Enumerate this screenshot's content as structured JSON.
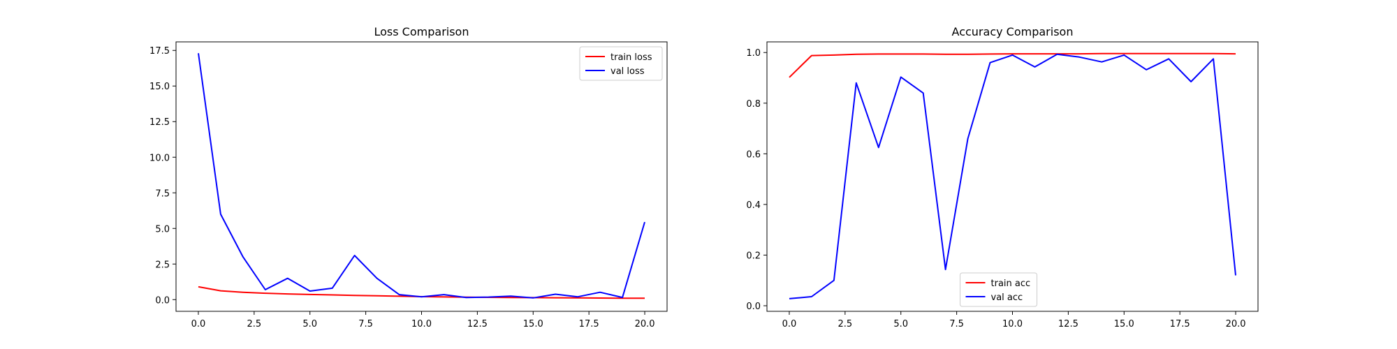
{
  "chart_data": [
    {
      "type": "line",
      "title": "Loss Comparison",
      "xlabel": "",
      "ylabel": "",
      "xlim": [
        -1,
        21
      ],
      "ylim": [
        -0.82,
        18.1
      ],
      "xticks": [
        0,
        2.5,
        5,
        7.5,
        10,
        12.5,
        15,
        17.5,
        20
      ],
      "xtick_labels": [
        "0.0",
        "2.5",
        "5.0",
        "7.5",
        "10.0",
        "12.5",
        "15.0",
        "17.5",
        "20.0"
      ],
      "yticks": [
        0,
        2.5,
        5,
        7.5,
        10,
        12.5,
        15,
        17.5
      ],
      "ytick_labels": [
        "0.0",
        "2.5",
        "5.0",
        "7.5",
        "10.0",
        "12.5",
        "15.0",
        "17.5"
      ],
      "grid": false,
      "legend": "upper right",
      "x": [
        0,
        1,
        2,
        3,
        4,
        5,
        6,
        7,
        8,
        9,
        10,
        11,
        12,
        13,
        14,
        15,
        16,
        17,
        18,
        19,
        20
      ],
      "series": [
        {
          "name": "train loss",
          "color": "#ff0000",
          "values": [
            0.9,
            0.62,
            0.52,
            0.45,
            0.4,
            0.36,
            0.33,
            0.3,
            0.27,
            0.24,
            0.21,
            0.19,
            0.17,
            0.16,
            0.15,
            0.14,
            0.13,
            0.12,
            0.11,
            0.1,
            0.1
          ]
        },
        {
          "name": "val loss",
          "color": "#0000ff",
          "values": [
            17.3,
            6.0,
            3.0,
            0.7,
            1.5,
            0.6,
            0.8,
            3.1,
            1.5,
            0.35,
            0.2,
            0.35,
            0.15,
            0.18,
            0.25,
            0.12,
            0.38,
            0.2,
            0.52,
            0.15,
            5.45
          ]
        }
      ]
    },
    {
      "type": "line",
      "title": "Accuracy Comparison",
      "xlabel": "",
      "ylabel": "",
      "xlim": [
        -1,
        21
      ],
      "ylim": [
        -0.022,
        1.042
      ],
      "xticks": [
        0,
        2.5,
        5,
        7.5,
        10,
        12.5,
        15,
        17.5,
        20
      ],
      "xtick_labels": [
        "0.0",
        "2.5",
        "5.0",
        "7.5",
        "10.0",
        "12.5",
        "15.0",
        "17.5",
        "20.0"
      ],
      "yticks": [
        0,
        0.2,
        0.4,
        0.6,
        0.8,
        1.0
      ],
      "ytick_labels": [
        "0.0",
        "0.2",
        "0.4",
        "0.6",
        "0.8",
        "1.0"
      ],
      "grid": false,
      "legend": "lower center",
      "x": [
        0,
        1,
        2,
        3,
        4,
        5,
        6,
        7,
        8,
        9,
        10,
        11,
        12,
        13,
        14,
        15,
        16,
        17,
        18,
        19,
        20
      ],
      "series": [
        {
          "name": "train acc",
          "color": "#ff0000",
          "values": [
            0.902,
            0.988,
            0.99,
            0.993,
            0.994,
            0.994,
            0.994,
            0.993,
            0.993,
            0.994,
            0.995,
            0.995,
            0.995,
            0.995,
            0.996,
            0.996,
            0.996,
            0.996,
            0.996,
            0.996,
            0.995
          ]
        },
        {
          "name": "val acc",
          "color": "#0000ff",
          "values": [
            0.028,
            0.036,
            0.1,
            0.88,
            0.625,
            0.903,
            0.84,
            0.143,
            0.66,
            0.96,
            0.99,
            0.943,
            0.993,
            0.982,
            0.963,
            0.99,
            0.932,
            0.975,
            0.885,
            0.975,
            0.12
          ]
        }
      ]
    }
  ]
}
